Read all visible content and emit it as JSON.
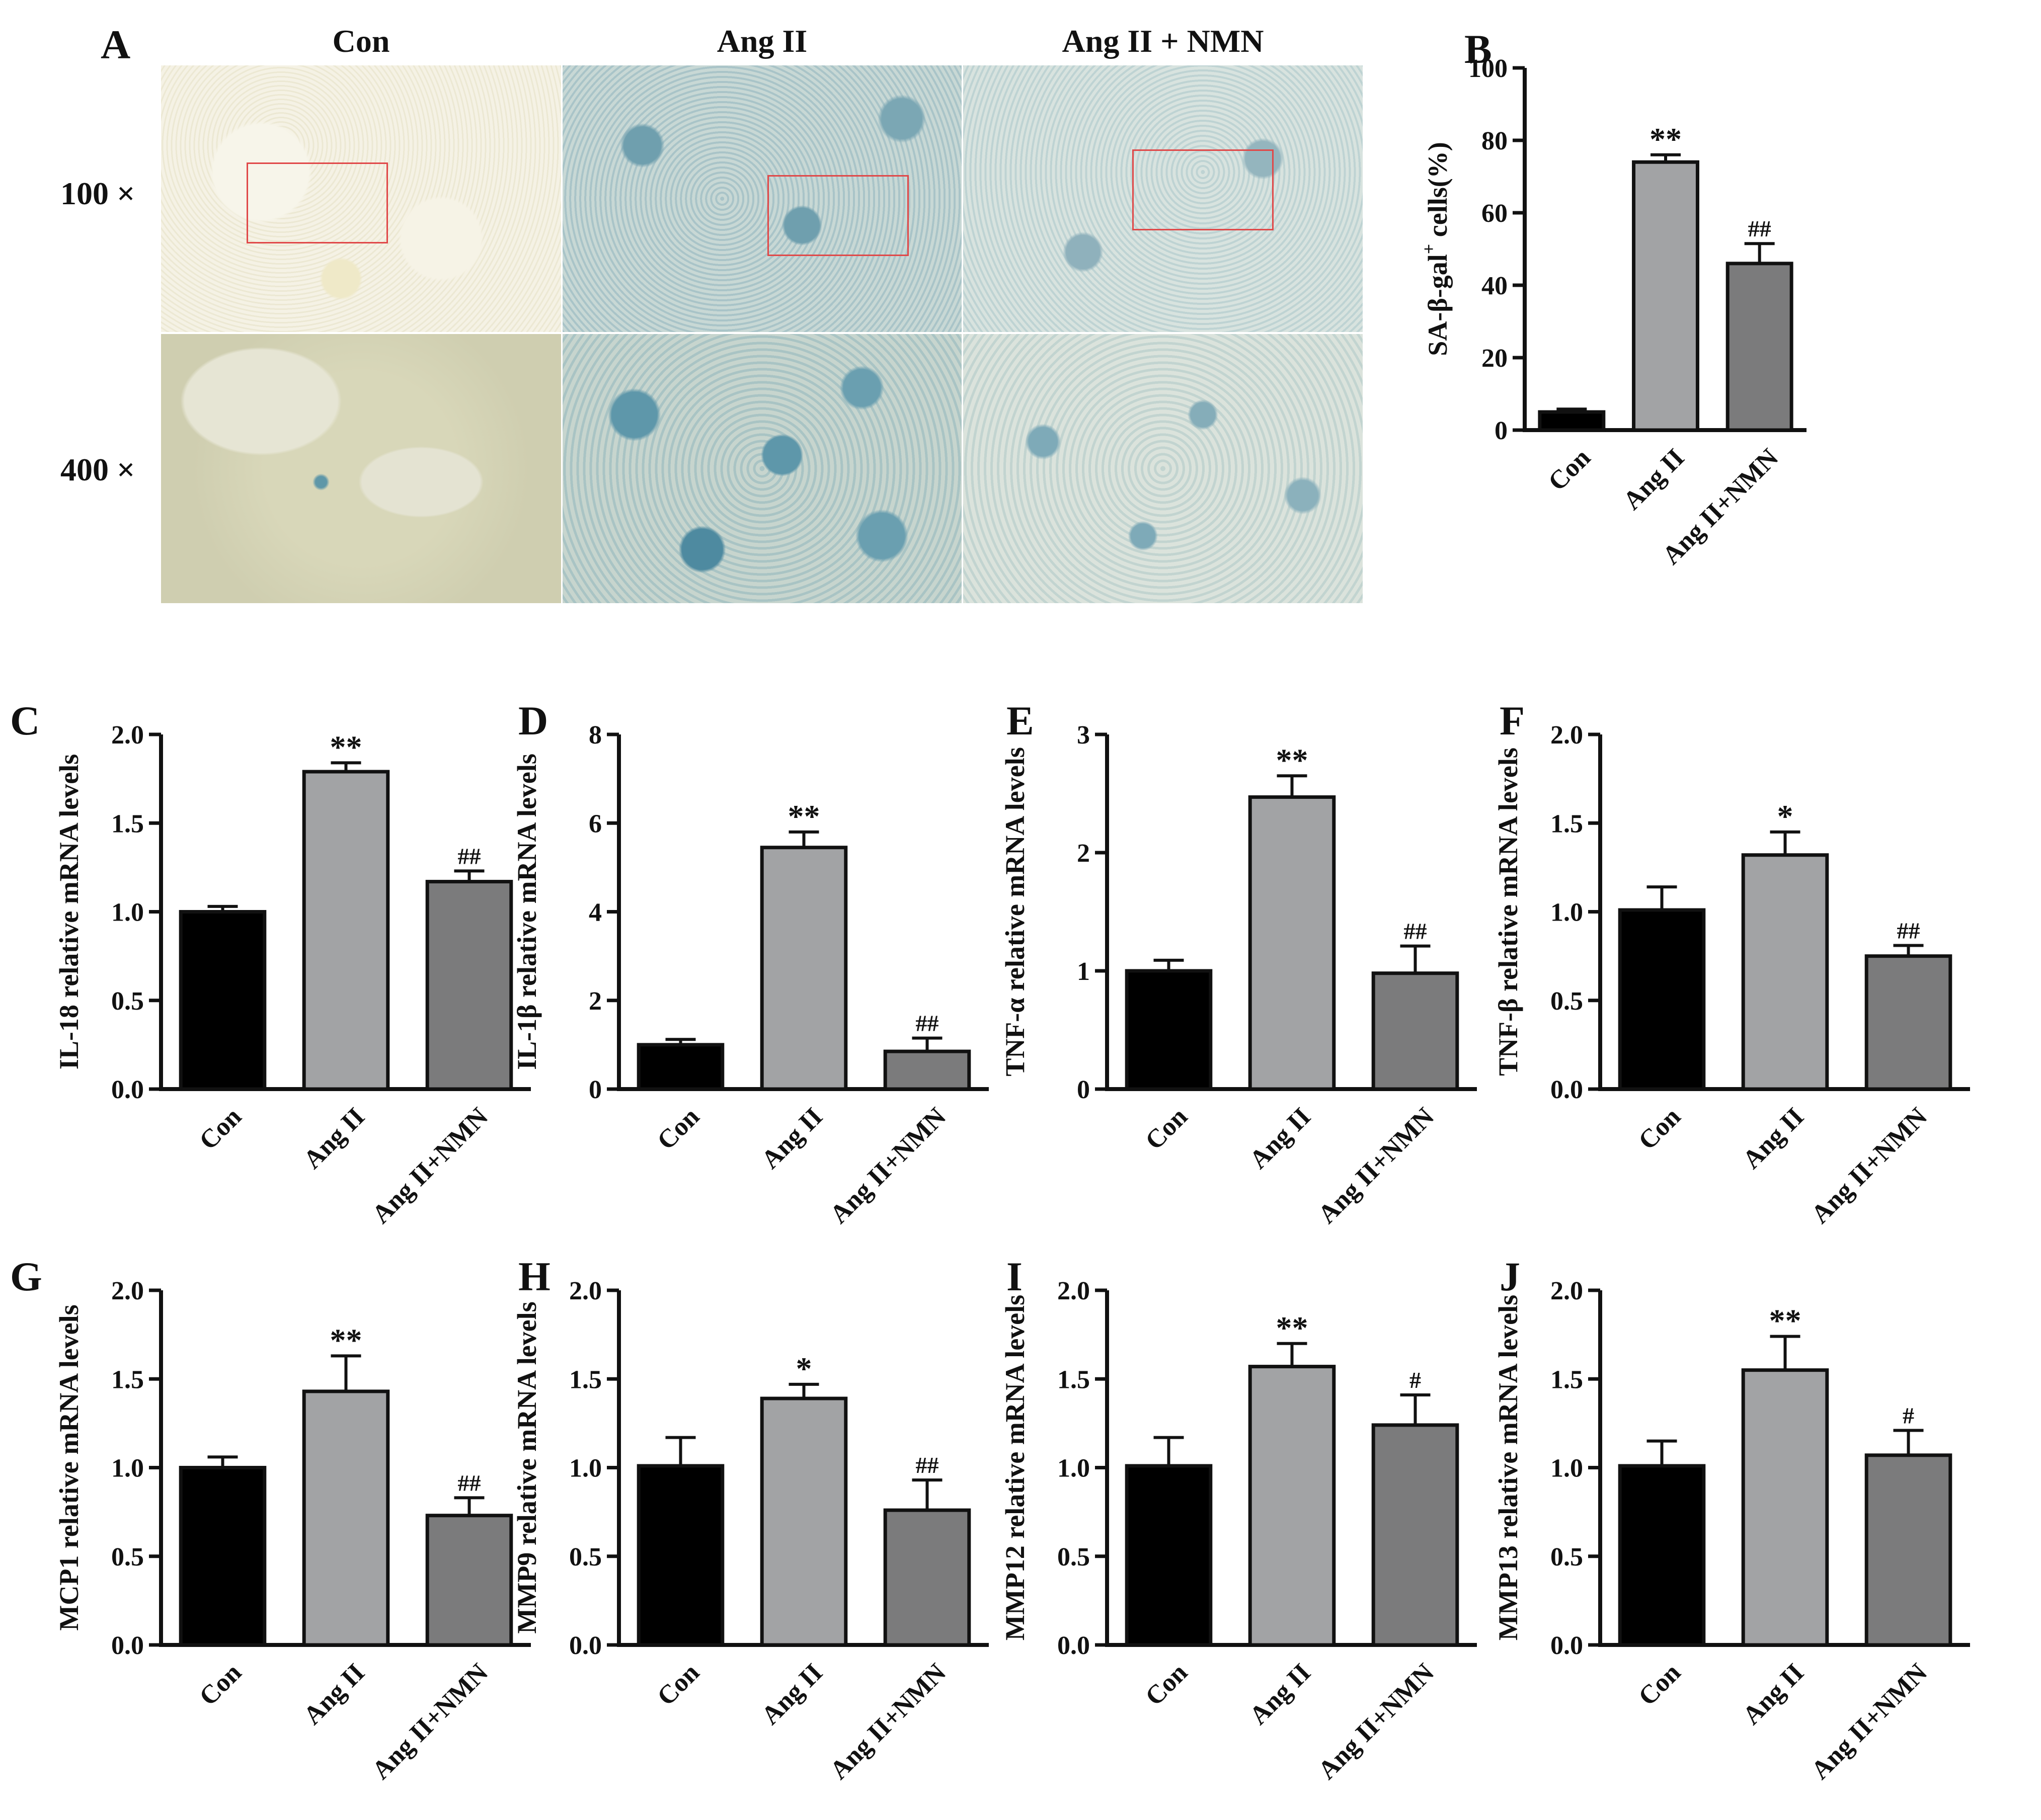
{
  "panel_a": {
    "letter": "A",
    "columns": [
      "Con",
      "Ang II",
      "Ang II + NMN"
    ],
    "rows": [
      "100 ×",
      "400 ×"
    ]
  },
  "colors": {
    "con": "#000000",
    "ang": "#a2a3a5",
    "nmn": "#7b7b7c",
    "bar_outline": "#111111",
    "roi_box": "#e04848",
    "tissue_blank": "#ece8d6",
    "stain_blue": "#5e97aa"
  },
  "panel_letters": [
    "B",
    "C",
    "D",
    "E",
    "F",
    "G",
    "H",
    "I",
    "J"
  ],
  "chart_data": [
    {
      "id": "B",
      "type": "bar",
      "categories": [
        "Con",
        "Ang II",
        "Ang II+NMN"
      ],
      "values": [
        5,
        74,
        46
      ],
      "errors": [
        0.8,
        2,
        5.5
      ],
      "marks": [
        "",
        "**",
        "##"
      ],
      "ylabel_main": "SA-β-gal",
      "ylabel_sup": "+",
      "ylabel_rest": " cells(%)",
      "ylim": [
        0,
        100
      ],
      "ticks": [
        0,
        20,
        40,
        60,
        80,
        100
      ],
      "tick_labels": [
        "0",
        "20",
        "40",
        "60",
        "80",
        "100"
      ]
    },
    {
      "id": "C",
      "type": "bar",
      "categories": [
        "Con",
        "Ang II",
        "Ang II+NMN"
      ],
      "values": [
        1.0,
        1.79,
        1.17
      ],
      "errors": [
        0.03,
        0.05,
        0.06
      ],
      "marks": [
        "",
        "**",
        "##"
      ],
      "ylabel": "IL-18 relative mRNA levels",
      "ylim": [
        0,
        2.0
      ],
      "ticks": [
        0,
        0.5,
        1.0,
        1.5,
        2.0
      ],
      "tick_labels": [
        "0.0",
        "0.5",
        "1.0",
        "1.5",
        "2.0"
      ]
    },
    {
      "id": "D",
      "type": "bar",
      "categories": [
        "Con",
        "Ang II",
        "Ang II+NMN"
      ],
      "values": [
        1.0,
        5.45,
        0.85
      ],
      "errors": [
        0.12,
        0.35,
        0.3
      ],
      "marks": [
        "",
        "**",
        "##"
      ],
      "ylabel": "IL-1β relative mRNA levels",
      "ylim": [
        0,
        8
      ],
      "ticks": [
        0,
        2,
        4,
        6,
        8
      ],
      "tick_labels": [
        "0",
        "2",
        "4",
        "6",
        "8"
      ]
    },
    {
      "id": "E",
      "type": "bar",
      "categories": [
        "Con",
        "Ang II",
        "Ang II+NMN"
      ],
      "values": [
        1.0,
        2.47,
        0.98
      ],
      "errors": [
        0.09,
        0.18,
        0.23
      ],
      "marks": [
        "",
        "**",
        "##"
      ],
      "ylabel": "TNF-α relative mRNA levels",
      "ylim": [
        0,
        3
      ],
      "ticks": [
        0,
        1,
        2,
        3
      ],
      "tick_labels": [
        "0",
        "1",
        "2",
        "3"
      ]
    },
    {
      "id": "F",
      "type": "bar",
      "categories": [
        "Con",
        "Ang II",
        "Ang II+NMN"
      ],
      "values": [
        1.01,
        1.32,
        0.75
      ],
      "errors": [
        0.13,
        0.13,
        0.06
      ],
      "marks": [
        "",
        "*",
        "##"
      ],
      "ylabel": "TNF-β relative mRNA levels",
      "ylim": [
        0,
        2.0
      ],
      "ticks": [
        0,
        0.5,
        1.0,
        1.5,
        2.0
      ],
      "tick_labels": [
        "0.0",
        "0.5",
        "1.0",
        "1.5",
        "2.0"
      ]
    },
    {
      "id": "G",
      "type": "bar",
      "categories": [
        "Con",
        "Ang II",
        "Ang II+NMN"
      ],
      "values": [
        1.0,
        1.43,
        0.73
      ],
      "errors": [
        0.06,
        0.2,
        0.1
      ],
      "marks": [
        "",
        "**",
        "##"
      ],
      "ylabel": "MCP1 relative mRNA levels",
      "ylim": [
        0,
        2.0
      ],
      "ticks": [
        0,
        0.5,
        1.0,
        1.5,
        2.0
      ],
      "tick_labels": [
        "0.0",
        "0.5",
        "1.0",
        "1.5",
        "2.0"
      ]
    },
    {
      "id": "H",
      "type": "bar",
      "categories": [
        "Con",
        "Ang II",
        "Ang II+NMN"
      ],
      "values": [
        1.01,
        1.39,
        0.76
      ],
      "errors": [
        0.16,
        0.08,
        0.17
      ],
      "marks": [
        "",
        "*",
        "##"
      ],
      "ylabel": "MMP9 relative mRNA levels",
      "ylim": [
        0,
        2.0
      ],
      "ticks": [
        0,
        0.5,
        1.0,
        1.5,
        2.0
      ],
      "tick_labels": [
        "0.0",
        "0.5",
        "1.0",
        "1.5",
        "2.0"
      ]
    },
    {
      "id": "I",
      "type": "bar",
      "categories": [
        "Con",
        "Ang II",
        "Ang II+NMN"
      ],
      "values": [
        1.01,
        1.57,
        1.24
      ],
      "errors": [
        0.16,
        0.13,
        0.17
      ],
      "marks": [
        "",
        "**",
        "#"
      ],
      "ylabel": "MMP12 relative mRNA levels",
      "ylim": [
        0,
        2.0
      ],
      "ticks": [
        0,
        0.5,
        1.0,
        1.5,
        2.0
      ],
      "tick_labels": [
        "0.0",
        "0.5",
        "1.0",
        "1.5",
        "2.0"
      ]
    },
    {
      "id": "J",
      "type": "bar",
      "categories": [
        "Con",
        "Ang II",
        "Ang II+NMN"
      ],
      "values": [
        1.01,
        1.55,
        1.07
      ],
      "errors": [
        0.14,
        0.19,
        0.14
      ],
      "marks": [
        "",
        "**",
        "#"
      ],
      "ylabel": "MMP13 relative mRNA levels",
      "ylim": [
        0,
        2.0
      ],
      "ticks": [
        0,
        0.5,
        1.0,
        1.5,
        2.0
      ],
      "tick_labels": [
        "0.0",
        "0.5",
        "1.0",
        "1.5",
        "2.0"
      ]
    }
  ]
}
